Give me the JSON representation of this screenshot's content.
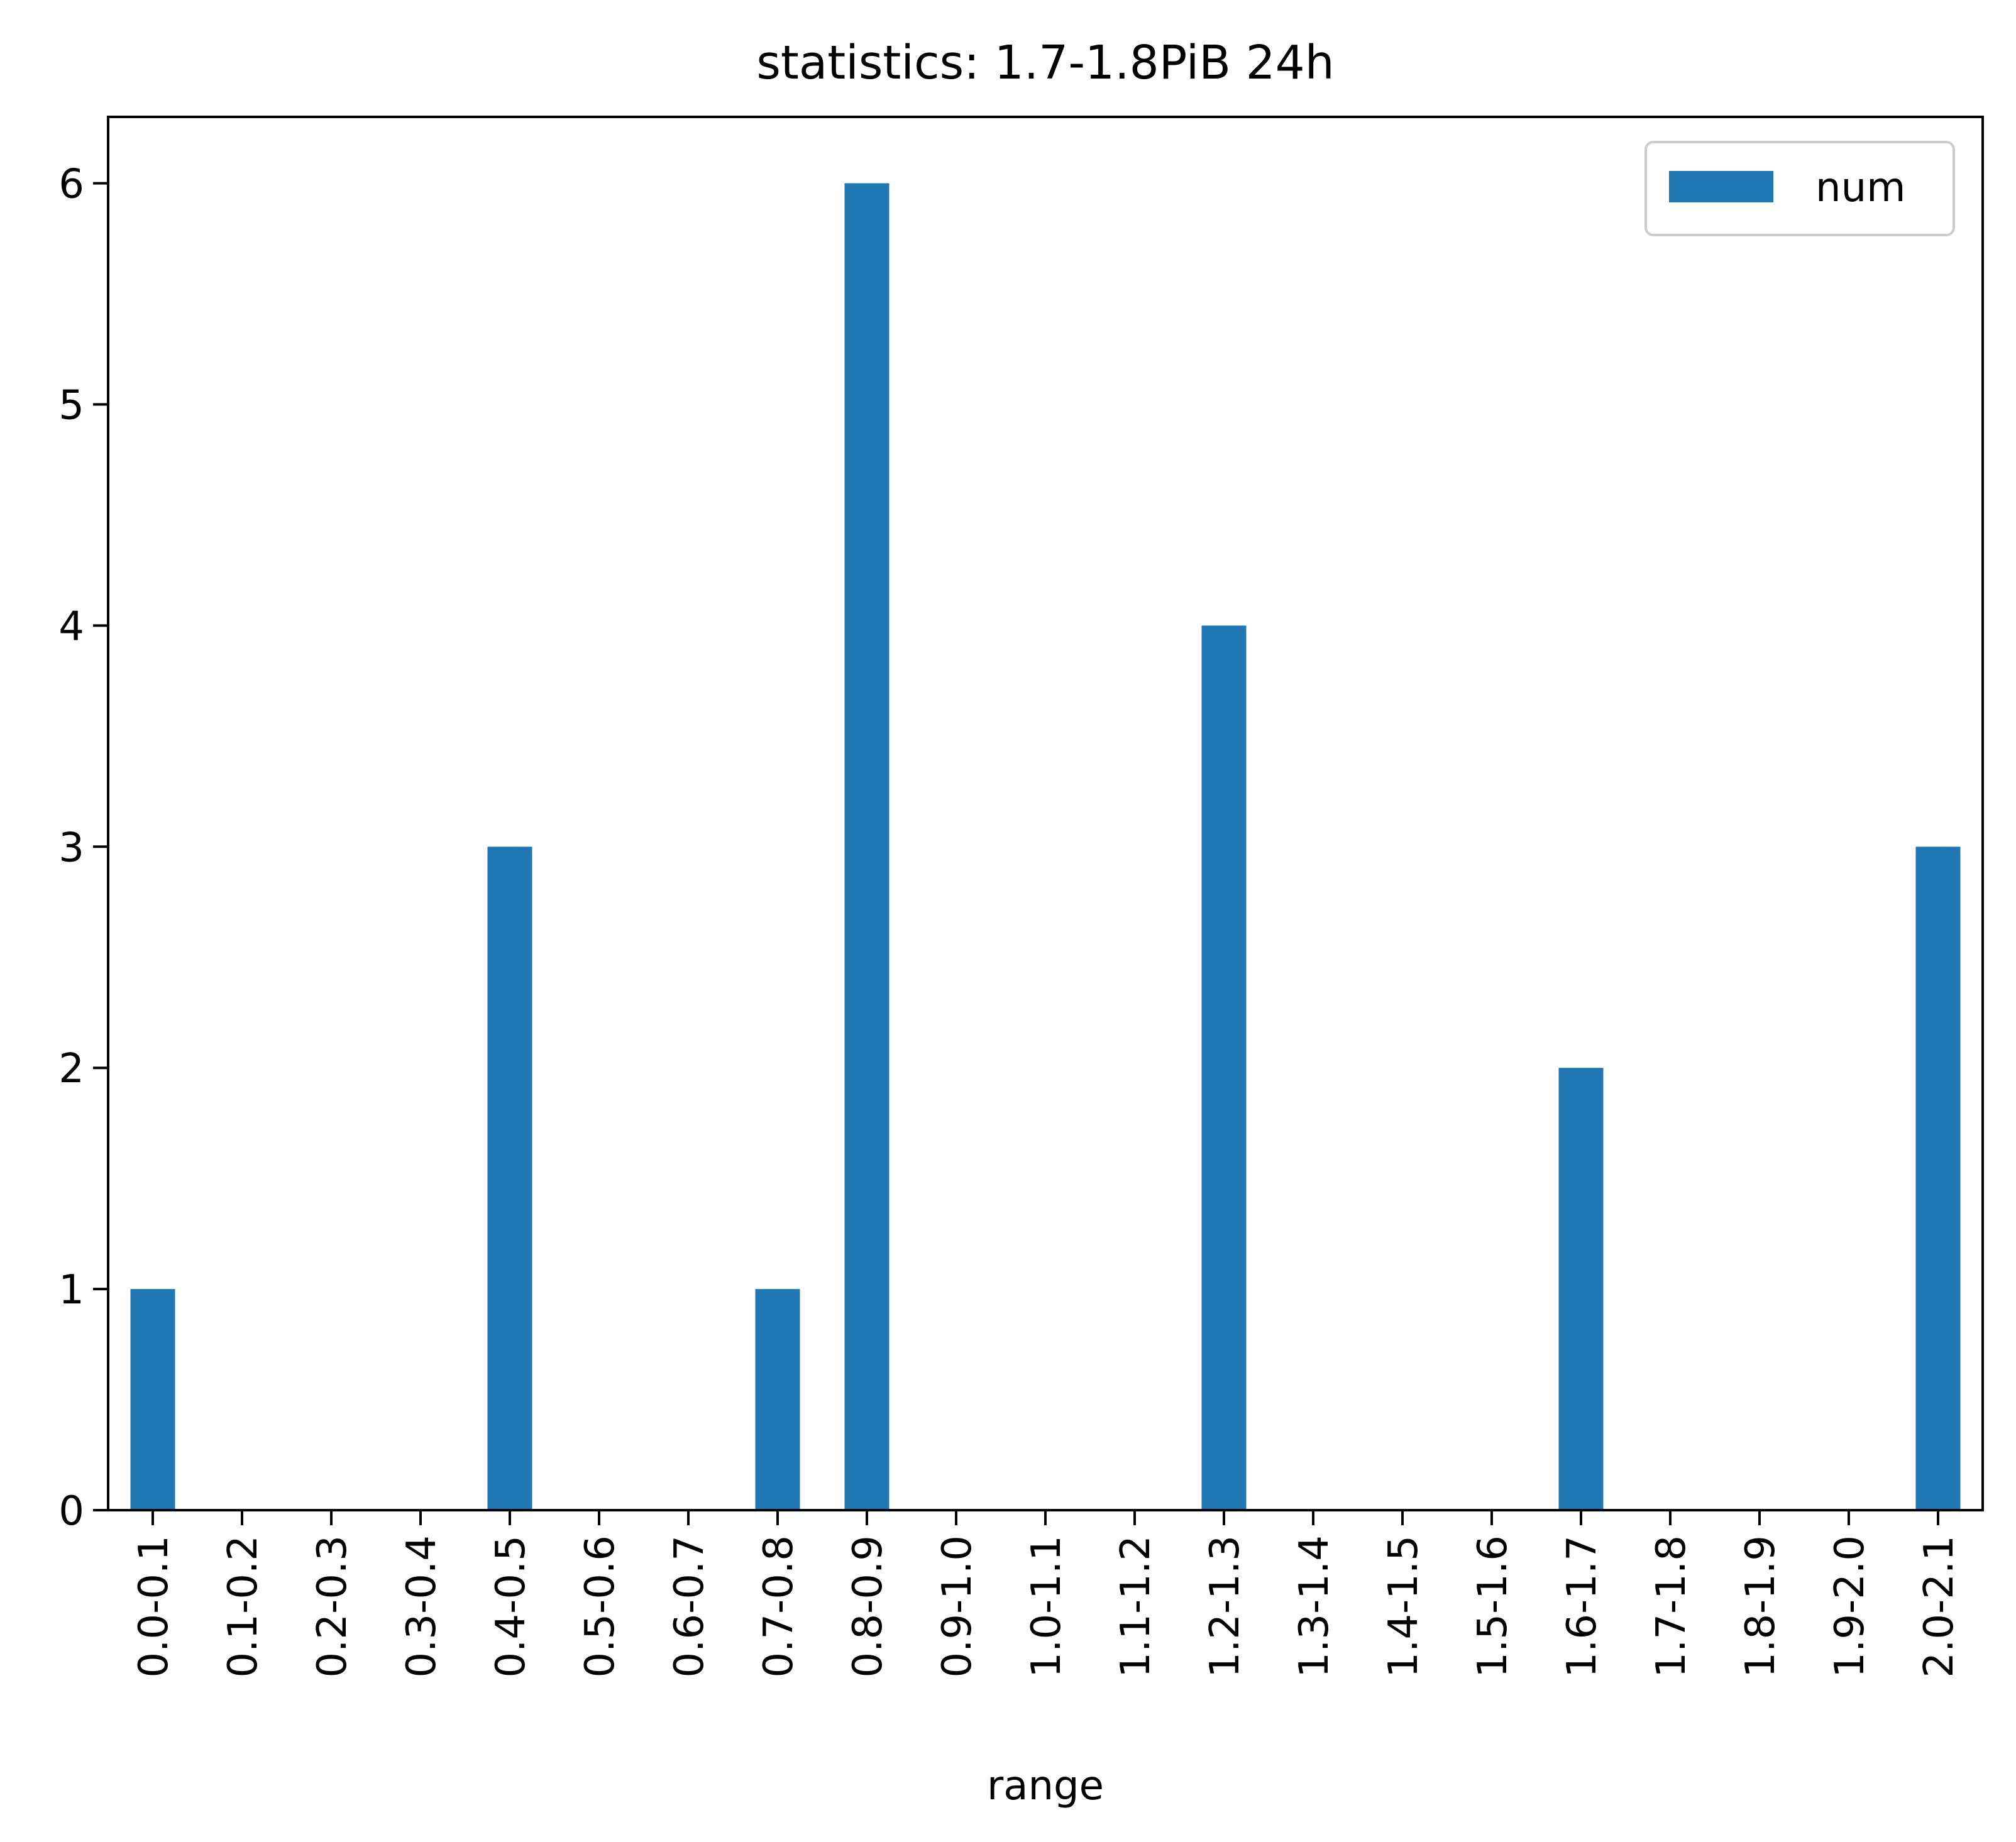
{
  "chart_data": {
    "type": "bar",
    "title": "statistics: 1.7-1.8PiB 24h",
    "xlabel": "range",
    "ylabel": "",
    "ylim": [
      0,
      6.3
    ],
    "yticks": [
      0,
      1,
      2,
      3,
      4,
      5,
      6
    ],
    "categories": [
      "0.0-0.1",
      "0.1-0.2",
      "0.2-0.3",
      "0.3-0.4",
      "0.4-0.5",
      "0.5-0.6",
      "0.6-0.7",
      "0.7-0.8",
      "0.8-0.9",
      "0.9-1.0",
      "1.0-1.1",
      "1.1-1.2",
      "1.2-1.3",
      "1.3-1.4",
      "1.4-1.5",
      "1.5-1.6",
      "1.6-1.7",
      "1.7-1.8",
      "1.8-1.9",
      "1.9-2.0",
      "2.0-2.1"
    ],
    "series": [
      {
        "name": "num",
        "values": [
          1,
          0,
          0,
          0,
          3,
          0,
          0,
          1,
          6,
          0,
          0,
          0,
          4,
          0,
          0,
          0,
          2,
          0,
          0,
          0,
          3
        ],
        "color": "#1f77b4"
      }
    ],
    "grid": false,
    "legend": "upper-right"
  }
}
